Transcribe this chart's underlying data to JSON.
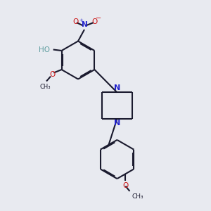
{
  "bg_color": "#e8eaf0",
  "bond_color": "#1a1a2e",
  "nitrogen_color": "#2222cc",
  "oxygen_color": "#cc1111",
  "line_width": 1.5,
  "dbo": 0.06,
  "fig_bg": "#e8eaf0",
  "xlim": [
    0,
    10
  ],
  "ylim": [
    0,
    10
  ]
}
